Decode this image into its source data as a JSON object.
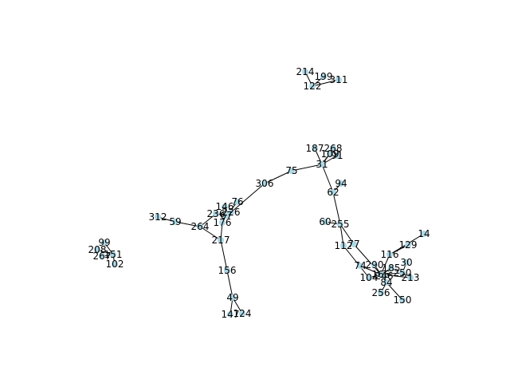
{
  "graph": {
    "node_color": "#add8e6",
    "edge_color": "#000000",
    "label_color": "#000000",
    "nodes": [
      {
        "id": "214"
      },
      {
        "id": "199"
      },
      {
        "id": "311"
      },
      {
        "id": "122"
      },
      {
        "id": "187"
      },
      {
        "id": "268"
      },
      {
        "id": "109"
      },
      {
        "id": "91"
      },
      {
        "id": "31"
      },
      {
        "id": "75"
      },
      {
        "id": "306"
      },
      {
        "id": "94"
      },
      {
        "id": "62"
      },
      {
        "id": "60"
      },
      {
        "id": "255"
      },
      {
        "id": "112"
      },
      {
        "id": "77"
      },
      {
        "id": "14"
      },
      {
        "id": "129"
      },
      {
        "id": "116"
      },
      {
        "id": "30"
      },
      {
        "id": "74"
      },
      {
        "id": "290"
      },
      {
        "id": "185"
      },
      {
        "id": "250"
      },
      {
        "id": "104"
      },
      {
        "id": "246"
      },
      {
        "id": "166"
      },
      {
        "id": "213"
      },
      {
        "id": "84"
      },
      {
        "id": "256"
      },
      {
        "id": "150"
      },
      {
        "id": "76"
      },
      {
        "id": "146"
      },
      {
        "id": "236"
      },
      {
        "id": "226"
      },
      {
        "id": "67"
      },
      {
        "id": "176"
      },
      {
        "id": "264"
      },
      {
        "id": "59"
      },
      {
        "id": "312"
      },
      {
        "id": "217"
      },
      {
        "id": "156"
      },
      {
        "id": "49"
      },
      {
        "id": "147"
      },
      {
        "id": "124"
      },
      {
        "id": "99"
      },
      {
        "id": "208"
      },
      {
        "id": "267"
      },
      {
        "id": "151"
      },
      {
        "id": "102"
      }
    ],
    "edges": [
      [
        "214",
        "122"
      ],
      [
        "199",
        "122"
      ],
      [
        "311",
        "122"
      ],
      [
        "187",
        "31"
      ],
      [
        "268",
        "31"
      ],
      [
        "109",
        "31"
      ],
      [
        "91",
        "31"
      ],
      [
        "31",
        "75"
      ],
      [
        "31",
        "62"
      ],
      [
        "75",
        "306"
      ],
      [
        "306",
        "226"
      ],
      [
        "94",
        "62"
      ],
      [
        "62",
        "255"
      ],
      [
        "60",
        "255"
      ],
      [
        "255",
        "112"
      ],
      [
        "255",
        "77"
      ],
      [
        "77",
        "166"
      ],
      [
        "112",
        "104"
      ],
      [
        "14",
        "116"
      ],
      [
        "129",
        "116"
      ],
      [
        "116",
        "166"
      ],
      [
        "30",
        "250"
      ],
      [
        "74",
        "166"
      ],
      [
        "290",
        "166"
      ],
      [
        "185",
        "166"
      ],
      [
        "250",
        "166"
      ],
      [
        "104",
        "166"
      ],
      [
        "246",
        "166"
      ],
      [
        "213",
        "166"
      ],
      [
        "84",
        "166"
      ],
      [
        "84",
        "256"
      ],
      [
        "84",
        "150"
      ],
      [
        "76",
        "67"
      ],
      [
        "146",
        "67"
      ],
      [
        "236",
        "67"
      ],
      [
        "226",
        "67"
      ],
      [
        "67",
        "176"
      ],
      [
        "176",
        "217"
      ],
      [
        "236",
        "264"
      ],
      [
        "264",
        "59"
      ],
      [
        "59",
        "312"
      ],
      [
        "264",
        "217"
      ],
      [
        "217",
        "156"
      ],
      [
        "156",
        "49"
      ],
      [
        "49",
        "147"
      ],
      [
        "49",
        "124"
      ],
      [
        "99",
        "151"
      ],
      [
        "208",
        "151"
      ],
      [
        "267",
        "151"
      ],
      [
        "151",
        "102"
      ]
    ]
  }
}
